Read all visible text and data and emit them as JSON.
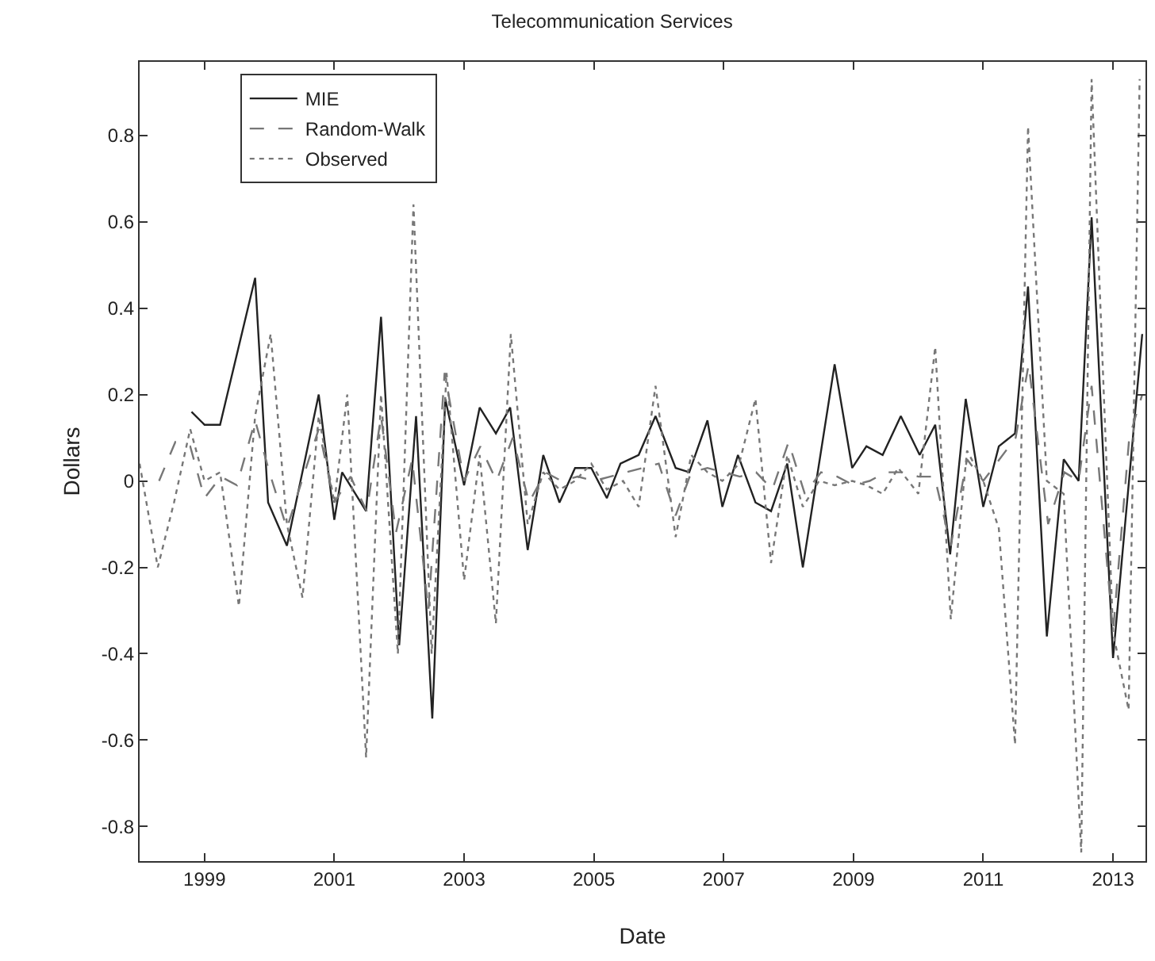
{
  "chart_data": {
    "type": "line",
    "title": "Telecommunication Services",
    "xlabel": "Date",
    "ylabel": "Dollars",
    "xlim": [
      1998,
      2013.5
    ],
    "xticks": [
      1999,
      2001,
      2003,
      2005,
      2007,
      2009,
      2011,
      2013
    ],
    "ylim": [
      -0.88,
      0.97
    ],
    "yticks": [
      -0.8,
      -0.6,
      -0.4,
      -0.2,
      0,
      0.2,
      0.4,
      0.6,
      0.8
    ],
    "grid": false,
    "legend": "top left",
    "series": [
      {
        "name": "MIE",
        "color": "#222222",
        "line_style": "solid",
        "x": [
          1998.8,
          1999.0,
          1999.24,
          1999.78,
          1999.98,
          2000.27,
          2000.76,
          2001.0,
          2001.12,
          2001.49,
          2001.72,
          2001.9,
          2002.0,
          2002.26,
          2002.51,
          2002.71,
          2003.0,
          2003.24,
          2003.49,
          2003.71,
          2003.98,
          2004.22,
          2004.47,
          2004.71,
          2004.96,
          2005.2,
          2005.41,
          2005.69,
          2005.95,
          2006.26,
          2006.47,
          2006.75,
          2006.98,
          2007.22,
          2007.49,
          2007.73,
          2007.98,
          2008.22,
          2008.71,
          2008.98,
          2009.2,
          2009.45,
          2009.73,
          2010.02,
          2010.26,
          2010.49,
          2010.73,
          2011.0,
          2011.24,
          2011.49,
          2011.69,
          2011.98,
          2012.24,
          2012.47,
          2012.67,
          2013.0,
          2013.45
        ],
        "values": [
          0.16,
          0.13,
          0.13,
          0.47,
          -0.05,
          -0.15,
          0.2,
          -0.09,
          0.02,
          -0.07,
          0.38,
          -0.11,
          -0.38,
          0.15,
          -0.55,
          0.19,
          -0.01,
          0.17,
          0.11,
          0.17,
          -0.16,
          0.06,
          -0.05,
          0.03,
          0.03,
          -0.04,
          0.04,
          0.06,
          0.15,
          0.03,
          0.02,
          0.14,
          -0.06,
          0.06,
          -0.05,
          -0.07,
          0.04,
          -0.2,
          0.27,
          0.03,
          0.08,
          0.06,
          0.15,
          0.06,
          0.13,
          -0.17,
          0.19,
          -0.06,
          0.08,
          0.11,
          0.45,
          -0.36,
          0.05,
          0.0,
          0.61,
          -0.41,
          0.34
        ]
      },
      {
        "name": "Random-Walk",
        "color": "#777777",
        "line_style": "dashed",
        "x": [
          1998.3,
          1998.55,
          1998.78,
          1999.0,
          1999.25,
          1999.5,
          1999.78,
          2000.0,
          2000.27,
          2000.5,
          2000.76,
          2001.0,
          2001.25,
          2001.5,
          2001.72,
          2001.95,
          2002.2,
          2002.45,
          2002.7,
          2003.0,
          2003.25,
          2003.5,
          2003.75,
          2004.0,
          2004.25,
          2004.5,
          2004.75,
          2005.0,
          2005.25,
          2005.5,
          2005.75,
          2006.0,
          2006.26,
          2006.5,
          2006.75,
          2007.0,
          2007.25,
          2007.5,
          2007.75,
          2008.0,
          2008.25,
          2008.5,
          2008.75,
          2009.0,
          2009.25,
          2009.5,
          2009.75,
          2010.0,
          2010.25,
          2010.5,
          2010.75,
          2011.0,
          2011.25,
          2011.5,
          2011.7,
          2012.0,
          2012.25,
          2012.47,
          2012.67,
          2013.0,
          2013.25,
          2013.45
        ],
        "values": [
          0.0,
          0.09,
          0.08,
          -0.04,
          0.01,
          -0.01,
          0.14,
          0.02,
          -0.11,
          0.0,
          0.12,
          -0.05,
          0.01,
          -0.07,
          0.15,
          -0.12,
          0.05,
          -0.3,
          0.25,
          0.0,
          0.08,
          0.0,
          0.1,
          -0.05,
          0.02,
          0.0,
          0.01,
          0.0,
          0.01,
          0.02,
          0.03,
          0.04,
          -0.08,
          0.02,
          0.03,
          0.02,
          0.01,
          0.02,
          -0.02,
          0.09,
          -0.03,
          0.02,
          0.01,
          -0.01,
          0.0,
          0.02,
          0.02,
          0.01,
          0.01,
          -0.15,
          0.05,
          0.0,
          0.05,
          0.1,
          0.27,
          -0.1,
          0.02,
          0.0,
          0.22,
          -0.35,
          0.1,
          0.2
        ]
      },
      {
        "name": "Observed",
        "color": "#777777",
        "line_style": "dotted",
        "x": [
          1998.0,
          1998.28,
          1998.53,
          1998.78,
          1999.0,
          1999.24,
          1999.53,
          1999.78,
          2000.02,
          2000.27,
          2000.51,
          2000.76,
          2001.0,
          2001.2,
          2001.49,
          2001.72,
          2001.98,
          2002.22,
          2002.5,
          2002.73,
          2003.0,
          2003.24,
          2003.49,
          2003.72,
          2003.98,
          2004.22,
          2004.47,
          2004.71,
          2004.96,
          2005.2,
          2005.45,
          2005.69,
          2005.95,
          2006.26,
          2006.5,
          2006.75,
          2006.98,
          2007.24,
          2007.49,
          2007.73,
          2007.98,
          2008.22,
          2008.47,
          2008.71,
          2008.98,
          2009.2,
          2009.45,
          2009.69,
          2010.0,
          2010.26,
          2010.5,
          2010.75,
          2011.0,
          2011.24,
          2011.49,
          2011.69,
          2011.98,
          2012.24,
          2012.51,
          2012.67,
          2013.0,
          2013.24,
          2013.41
        ],
        "values": [
          0.04,
          -0.2,
          -0.05,
          0.12,
          0.0,
          0.02,
          -0.29,
          0.15,
          0.34,
          -0.1,
          -0.27,
          0.15,
          -0.05,
          0.2,
          -0.64,
          0.2,
          -0.4,
          0.64,
          -0.4,
          0.25,
          -0.23,
          0.06,
          -0.33,
          0.34,
          -0.1,
          0.02,
          -0.02,
          0.0,
          0.04,
          -0.02,
          0.0,
          -0.06,
          0.22,
          -0.13,
          0.06,
          0.02,
          0.0,
          0.04,
          0.19,
          -0.19,
          0.06,
          -0.06,
          0.0,
          -0.01,
          0.0,
          -0.01,
          -0.03,
          0.03,
          -0.03,
          0.31,
          -0.32,
          0.07,
          0.0,
          -0.11,
          -0.61,
          0.82,
          0.0,
          -0.03,
          -0.86,
          0.93,
          -0.35,
          -0.53,
          0.93
        ]
      }
    ]
  }
}
